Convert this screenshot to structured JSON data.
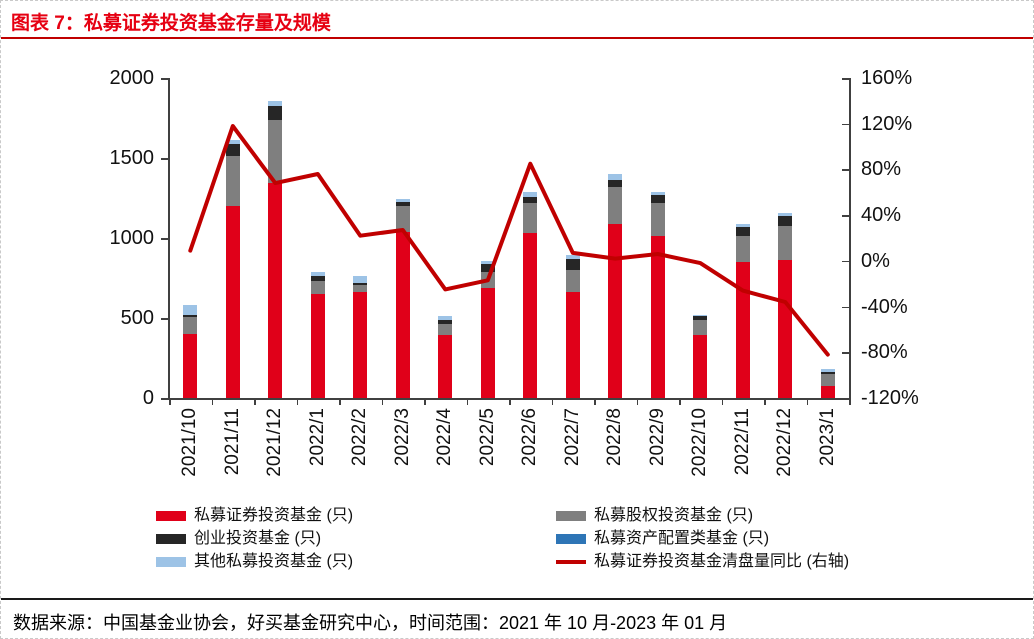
{
  "header": {
    "title": "图表 7：私募证券投资基金存量及规模"
  },
  "footer": {
    "source": "数据来源：中国基金业协会，好买基金研究中心，时间范围：2021 年 10 月-2023 年 01 月"
  },
  "colors": {
    "title_red": "#e60012",
    "header_rule": "#c00000",
    "bar_red": "#e00019",
    "bar_gray": "#7f7f7f",
    "bar_black": "#262626",
    "bar_blue": "#2e75b6",
    "bar_lightblue": "#9dc3e6",
    "line_red": "#c00000",
    "axis": "#404040"
  },
  "chart_data": {
    "type": "combo: stacked bar + line",
    "categories": [
      "2021/10",
      "2021/11",
      "2021/12",
      "2022/1",
      "2022/2",
      "2022/3",
      "2022/4",
      "2022/5",
      "2022/6",
      "2022/7",
      "2022/8",
      "2022/9",
      "2022/10",
      "2022/11",
      "2022/12",
      "2023/1"
    ],
    "bar_series": [
      {
        "name": "私募证券投资基金 (只)",
        "color": "#e00019",
        "values": [
          400,
          1200,
          1345,
          650,
          660,
          1040,
          395,
          690,
          1030,
          660,
          1090,
          1015,
          395,
          850,
          860,
          75
        ]
      },
      {
        "name": "私募股权投资基金 (只)",
        "color": "#7f7f7f",
        "values": [
          105,
          310,
          395,
          80,
          45,
          160,
          70,
          95,
          190,
          140,
          230,
          205,
          95,
          165,
          215,
          75
        ]
      },
      {
        "name": "创业投资基金 (只)",
        "color": "#262626",
        "values": [
          15,
          75,
          85,
          30,
          15,
          25,
          20,
          50,
          35,
          70,
          40,
          50,
          25,
          55,
          60,
          15
        ]
      },
      {
        "name": "私募资产配置类基金 (只)",
        "color": "#2e75b6",
        "values": [
          0,
          0,
          0,
          0,
          0,
          0,
          0,
          0,
          0,
          0,
          0,
          0,
          0,
          0,
          0,
          0
        ]
      },
      {
        "name": "其他私募投资基金 (只)",
        "color": "#9dc3e6",
        "values": [
          60,
          30,
          30,
          30,
          45,
          20,
          25,
          20,
          30,
          25,
          40,
          20,
          5,
          15,
          20,
          15
        ]
      }
    ],
    "line_series": {
      "name": "私募证券投资基金清盘量同比 (右轴)",
      "color": "#c00000",
      "axis": "right",
      "values_pct": [
        9,
        118,
        68,
        76,
        22,
        27,
        -25,
        -17,
        85,
        7,
        2,
        6,
        -2,
        -26,
        -36,
        -82
      ]
    },
    "left_axis": {
      "min": 0,
      "max": 2000,
      "tick_labels": [
        "0",
        "500",
        "1000",
        "1500",
        "2000"
      ]
    },
    "right_axis": {
      "min": -120,
      "max": 160,
      "tick_labels": [
        "160%",
        "120%",
        "80%",
        "40%",
        "0%",
        "-40%",
        "-80%",
        "-120%"
      ]
    },
    "grid": "off",
    "legend_position": "bottom, two columns",
    "legend_columns": [
      [
        "私募证券投资基金 (只)",
        "创业投资基金 (只)",
        "其他私募投资基金 (只)"
      ],
      [
        "私募股权投资基金 (只)",
        "私募资产配置类基金 (只)",
        "私募证券投资基金清盘量同比 (右轴)"
      ]
    ]
  }
}
